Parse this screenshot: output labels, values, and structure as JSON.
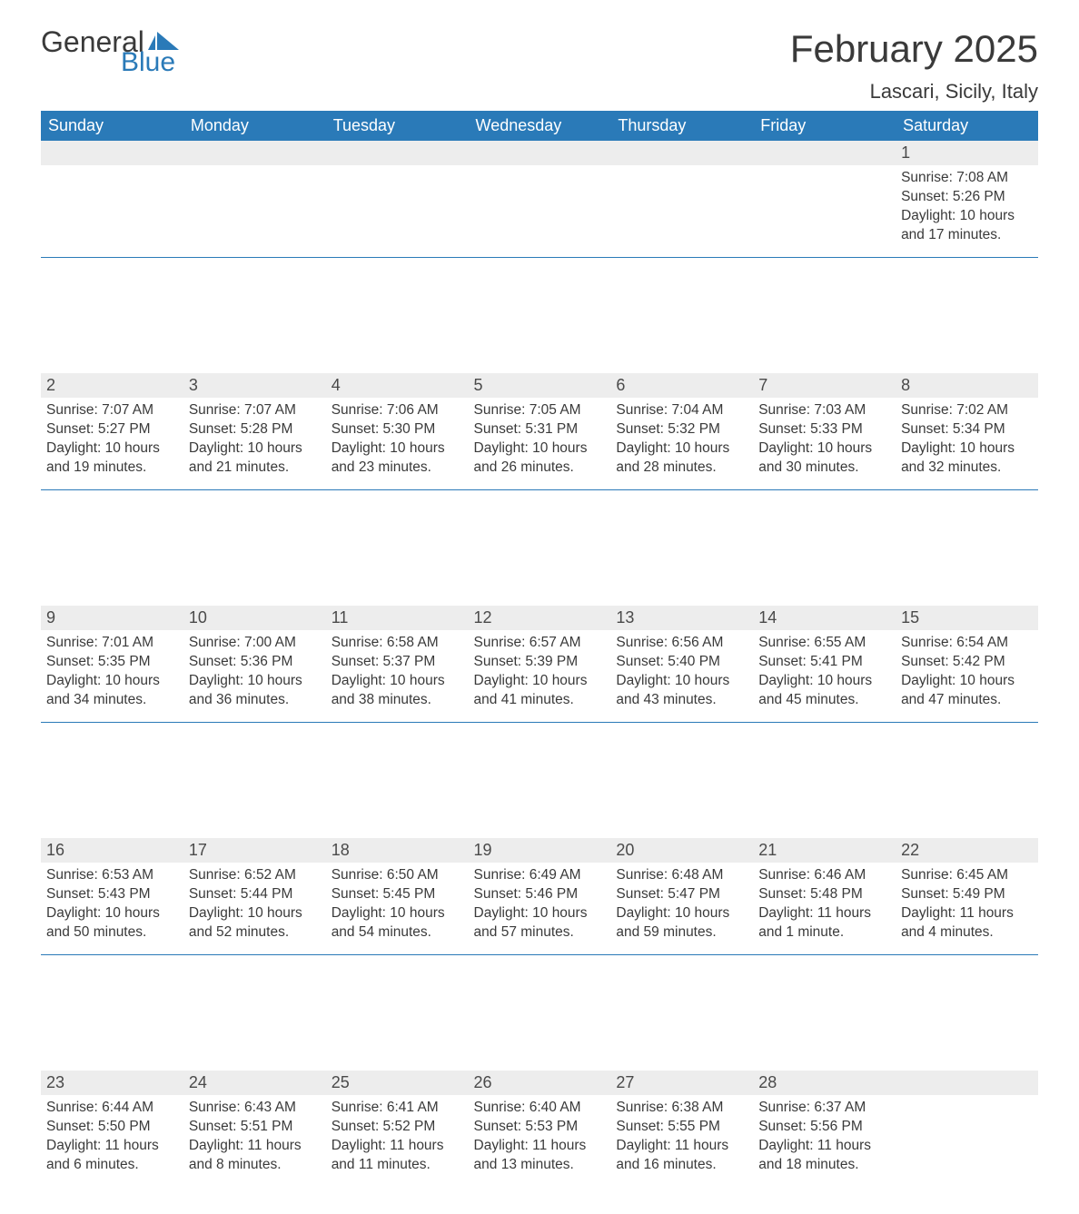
{
  "logo": {
    "text1": "General",
    "text2": "Blue"
  },
  "title": "February 2025",
  "location": "Lascari, Sicily, Italy",
  "colors": {
    "header_bg": "#2a7ab8",
    "header_fg": "#ffffff",
    "daynum_bg": "#ededed",
    "text": "#3a3a3a",
    "accent": "#2a7ab8"
  },
  "day_labels": [
    "Sunday",
    "Monday",
    "Tuesday",
    "Wednesday",
    "Thursday",
    "Friday",
    "Saturday"
  ],
  "weeks": [
    [
      null,
      null,
      null,
      null,
      null,
      null,
      {
        "n": "1",
        "sunrise": "Sunrise: 7:08 AM",
        "sunset": "Sunset: 5:26 PM",
        "daylight": "Daylight: 10 hours and 17 minutes."
      }
    ],
    [
      {
        "n": "2",
        "sunrise": "Sunrise: 7:07 AM",
        "sunset": "Sunset: 5:27 PM",
        "daylight": "Daylight: 10 hours and 19 minutes."
      },
      {
        "n": "3",
        "sunrise": "Sunrise: 7:07 AM",
        "sunset": "Sunset: 5:28 PM",
        "daylight": "Daylight: 10 hours and 21 minutes."
      },
      {
        "n": "4",
        "sunrise": "Sunrise: 7:06 AM",
        "sunset": "Sunset: 5:30 PM",
        "daylight": "Daylight: 10 hours and 23 minutes."
      },
      {
        "n": "5",
        "sunrise": "Sunrise: 7:05 AM",
        "sunset": "Sunset: 5:31 PM",
        "daylight": "Daylight: 10 hours and 26 minutes."
      },
      {
        "n": "6",
        "sunrise": "Sunrise: 7:04 AM",
        "sunset": "Sunset: 5:32 PM",
        "daylight": "Daylight: 10 hours and 28 minutes."
      },
      {
        "n": "7",
        "sunrise": "Sunrise: 7:03 AM",
        "sunset": "Sunset: 5:33 PM",
        "daylight": "Daylight: 10 hours and 30 minutes."
      },
      {
        "n": "8",
        "sunrise": "Sunrise: 7:02 AM",
        "sunset": "Sunset: 5:34 PM",
        "daylight": "Daylight: 10 hours and 32 minutes."
      }
    ],
    [
      {
        "n": "9",
        "sunrise": "Sunrise: 7:01 AM",
        "sunset": "Sunset: 5:35 PM",
        "daylight": "Daylight: 10 hours and 34 minutes."
      },
      {
        "n": "10",
        "sunrise": "Sunrise: 7:00 AM",
        "sunset": "Sunset: 5:36 PM",
        "daylight": "Daylight: 10 hours and 36 minutes."
      },
      {
        "n": "11",
        "sunrise": "Sunrise: 6:58 AM",
        "sunset": "Sunset: 5:37 PM",
        "daylight": "Daylight: 10 hours and 38 minutes."
      },
      {
        "n": "12",
        "sunrise": "Sunrise: 6:57 AM",
        "sunset": "Sunset: 5:39 PM",
        "daylight": "Daylight: 10 hours and 41 minutes."
      },
      {
        "n": "13",
        "sunrise": "Sunrise: 6:56 AM",
        "sunset": "Sunset: 5:40 PM",
        "daylight": "Daylight: 10 hours and 43 minutes."
      },
      {
        "n": "14",
        "sunrise": "Sunrise: 6:55 AM",
        "sunset": "Sunset: 5:41 PM",
        "daylight": "Daylight: 10 hours and 45 minutes."
      },
      {
        "n": "15",
        "sunrise": "Sunrise: 6:54 AM",
        "sunset": "Sunset: 5:42 PM",
        "daylight": "Daylight: 10 hours and 47 minutes."
      }
    ],
    [
      {
        "n": "16",
        "sunrise": "Sunrise: 6:53 AM",
        "sunset": "Sunset: 5:43 PM",
        "daylight": "Daylight: 10 hours and 50 minutes."
      },
      {
        "n": "17",
        "sunrise": "Sunrise: 6:52 AM",
        "sunset": "Sunset: 5:44 PM",
        "daylight": "Daylight: 10 hours and 52 minutes."
      },
      {
        "n": "18",
        "sunrise": "Sunrise: 6:50 AM",
        "sunset": "Sunset: 5:45 PM",
        "daylight": "Daylight: 10 hours and 54 minutes."
      },
      {
        "n": "19",
        "sunrise": "Sunrise: 6:49 AM",
        "sunset": "Sunset: 5:46 PM",
        "daylight": "Daylight: 10 hours and 57 minutes."
      },
      {
        "n": "20",
        "sunrise": "Sunrise: 6:48 AM",
        "sunset": "Sunset: 5:47 PM",
        "daylight": "Daylight: 10 hours and 59 minutes."
      },
      {
        "n": "21",
        "sunrise": "Sunrise: 6:46 AM",
        "sunset": "Sunset: 5:48 PM",
        "daylight": "Daylight: 11 hours and 1 minute."
      },
      {
        "n": "22",
        "sunrise": "Sunrise: 6:45 AM",
        "sunset": "Sunset: 5:49 PM",
        "daylight": "Daylight: 11 hours and 4 minutes."
      }
    ],
    [
      {
        "n": "23",
        "sunrise": "Sunrise: 6:44 AM",
        "sunset": "Sunset: 5:50 PM",
        "daylight": "Daylight: 11 hours and 6 minutes."
      },
      {
        "n": "24",
        "sunrise": "Sunrise: 6:43 AM",
        "sunset": "Sunset: 5:51 PM",
        "daylight": "Daylight: 11 hours and 8 minutes."
      },
      {
        "n": "25",
        "sunrise": "Sunrise: 6:41 AM",
        "sunset": "Sunset: 5:52 PM",
        "daylight": "Daylight: 11 hours and 11 minutes."
      },
      {
        "n": "26",
        "sunrise": "Sunrise: 6:40 AM",
        "sunset": "Sunset: 5:53 PM",
        "daylight": "Daylight: 11 hours and 13 minutes."
      },
      {
        "n": "27",
        "sunrise": "Sunrise: 6:38 AM",
        "sunset": "Sunset: 5:55 PM",
        "daylight": "Daylight: 11 hours and 16 minutes."
      },
      {
        "n": "28",
        "sunrise": "Sunrise: 6:37 AM",
        "sunset": "Sunset: 5:56 PM",
        "daylight": "Daylight: 11 hours and 18 minutes."
      },
      null
    ]
  ]
}
